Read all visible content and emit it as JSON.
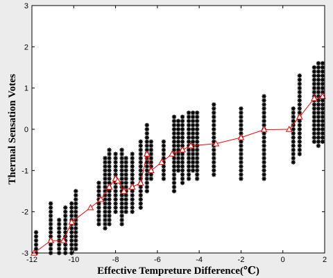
{
  "chart_data": {
    "type": "scatter",
    "title": "",
    "xlabel": "Effective Tempreture Difference(℃)",
    "ylabel": "Thermal Sensation Votes",
    "xlim": [
      -12,
      2
    ],
    "ylim": [
      -3,
      3
    ],
    "xticks": [
      -12,
      -10,
      -8,
      -6,
      -4,
      -2,
      0,
      2
    ],
    "yticks": [
      -3,
      -2,
      -1,
      0,
      1,
      2,
      3
    ],
    "grid": false,
    "legend": "none",
    "colors": {
      "points": "#000000",
      "mean_line": "#ff0000",
      "plot_bg": "#ffffff",
      "page_bg": "#ececec"
    },
    "series": [
      {
        "kind": "scatter-columns",
        "marker": "asterisk",
        "columns": [
          {
            "x": -11.8,
            "y_min": -3.0,
            "y_max": -2.5
          },
          {
            "x": -11.1,
            "y_min": -3.0,
            "y_max": -1.8
          },
          {
            "x": -10.7,
            "y_min": -3.0,
            "y_max": -2.2
          },
          {
            "x": -10.4,
            "y_min": -3.0,
            "y_max": -1.9
          },
          {
            "x": -10.1,
            "y_min": -3.0,
            "y_max": -1.8
          },
          {
            "x": -9.9,
            "y_min": -2.9,
            "y_max": -1.5
          },
          {
            "x": -8.8,
            "y_min": -2.3,
            "y_max": -1.3
          },
          {
            "x": -8.5,
            "y_min": -2.4,
            "y_max": -0.7
          },
          {
            "x": -8.3,
            "y_min": -2.3,
            "y_max": -0.5
          },
          {
            "x": -8.0,
            "y_min": -2.0,
            "y_max": -0.6
          },
          {
            "x": -7.7,
            "y_min": -2.3,
            "y_max": -0.5
          },
          {
            "x": -7.5,
            "y_min": -2.0,
            "y_max": -0.7
          },
          {
            "x": -7.2,
            "y_min": -2.0,
            "y_max": -0.6
          },
          {
            "x": -6.8,
            "y_min": -1.9,
            "y_max": -0.3
          },
          {
            "x": -6.5,
            "y_min": -1.5,
            "y_max": 0.1
          },
          {
            "x": -6.3,
            "y_min": -1.2,
            "y_max": -0.3
          },
          {
            "x": -5.7,
            "y_min": -1.2,
            "y_max": -0.3
          },
          {
            "x": -5.2,
            "y_min": -1.5,
            "y_max": 0.3
          },
          {
            "x": -5.0,
            "y_min": -1.0,
            "y_max": 0.2
          },
          {
            "x": -4.8,
            "y_min": -1.3,
            "y_max": 0.3
          },
          {
            "x": -4.5,
            "y_min": -1.2,
            "y_max": 0.4
          },
          {
            "x": -4.3,
            "y_min": -1.0,
            "y_max": 0.4
          },
          {
            "x": -4.1,
            "y_min": -1.2,
            "y_max": 0.4
          },
          {
            "x": -3.3,
            "y_min": -1.1,
            "y_max": 0.6
          },
          {
            "x": -2.0,
            "y_min": -1.2,
            "y_max": 0.5
          },
          {
            "x": -0.9,
            "y_min": -1.2,
            "y_max": 0.8
          },
          {
            "x": 0.5,
            "y_min": -0.8,
            "y_max": 0.5
          },
          {
            "x": 0.8,
            "y_min": -0.6,
            "y_max": 1.3
          },
          {
            "x": 1.5,
            "y_min": -0.3,
            "y_max": 1.5
          },
          {
            "x": 1.7,
            "y_min": -0.4,
            "y_max": 1.6
          },
          {
            "x": 1.9,
            "y_min": -0.3,
            "y_max": 1.6
          }
        ]
      },
      {
        "kind": "mean-line",
        "marker": "triangle",
        "x": [
          -11.9,
          -11.1,
          -10.5,
          -10.1,
          -9.2,
          -8.7,
          -8.3,
          -8.0,
          -7.9,
          -7.6,
          -7.2,
          -6.8,
          -6.5,
          -6.3,
          -5.8,
          -5.3,
          -4.8,
          -4.4,
          -3.2,
          -2.0,
          -0.9,
          0.3,
          0.8,
          1.5,
          1.9
        ],
        "y": [
          -3.0,
          -2.7,
          -2.7,
          -2.25,
          -1.9,
          -1.7,
          -1.4,
          -1.2,
          -1.25,
          -1.5,
          -1.4,
          -1.3,
          -0.6,
          -1.0,
          -0.8,
          -0.6,
          -0.5,
          -0.4,
          -0.35,
          -0.2,
          -0.01,
          0.0,
          0.3,
          0.75,
          0.8
        ]
      }
    ]
  }
}
